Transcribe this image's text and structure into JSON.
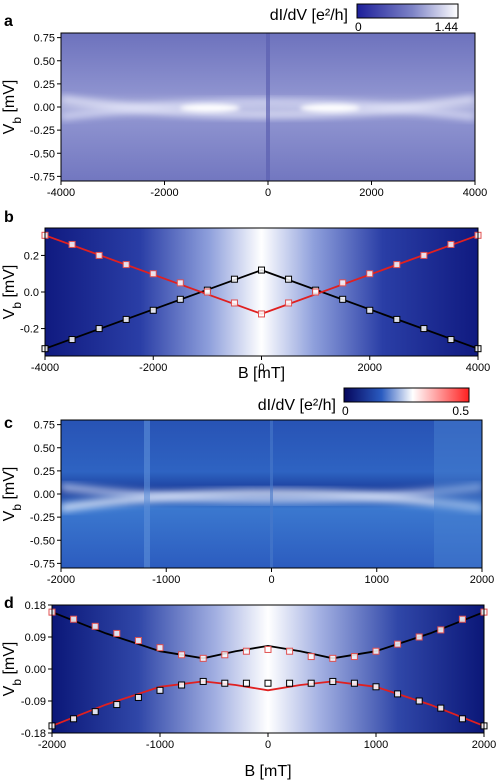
{
  "colorbar_top": {
    "label": "dI/dV [e²/h]",
    "min": "0",
    "max": "1.44",
    "colors": [
      "#1d1f9a",
      "#7d83c6",
      "#ffffff"
    ]
  },
  "colorbar_mid": {
    "label": "dI/dV [e²/h]",
    "min": "0",
    "max": "0.5",
    "colors": [
      "#06065c",
      "#2a5bc0",
      "#ffffff",
      "#ff2020"
    ]
  },
  "chart_data": [
    {
      "panel": "a",
      "type": "heatmap",
      "ylabel": "V_b [mV]",
      "xlim": [
        -4000,
        4000
      ],
      "ylim": [
        -0.8,
        0.8
      ],
      "xticks": [
        "-4000",
        "-2000",
        "0",
        "2000",
        "4000"
      ],
      "yticks": [
        "0.75",
        "0.50",
        "0.25",
        "0.00",
        "-0.25",
        "-0.50",
        "-0.75"
      ],
      "ytick_values": [
        0.75,
        0.5,
        0.25,
        0.0,
        -0.25,
        -0.5,
        -0.75
      ]
    },
    {
      "panel": "b",
      "type": "scatter",
      "xlabel": "B [mT]",
      "ylabel": "V_b [mV]",
      "xlim": [
        -4000,
        4000
      ],
      "ylim": [
        -0.35,
        0.35
      ],
      "xticks": [
        "-4000",
        "-2000",
        "0",
        "2000",
        "4000"
      ],
      "yticks": [
        "0.2",
        "0.0",
        "-0.2"
      ],
      "ytick_values": [
        0.2,
        0.0,
        -0.2
      ],
      "series": [
        {
          "color": "#000000",
          "type": "line",
          "x": [
            -4000,
            0,
            4000
          ],
          "y": [
            -0.31,
            0.12,
            -0.31
          ]
        },
        {
          "color": "#e02020",
          "type": "line",
          "x": [
            -4000,
            0,
            4000
          ],
          "y": [
            0.31,
            -0.12,
            0.31
          ]
        },
        {
          "color": "#000000",
          "type": "markers",
          "x": [
            -4000,
            -3500,
            -3000,
            -2500,
            -2000,
            -1500,
            -1000,
            -500,
            0,
            500,
            1000,
            1500,
            2000,
            2500,
            3000,
            3500,
            4000
          ],
          "y": [
            -0.31,
            -0.26,
            -0.2,
            -0.15,
            -0.1,
            -0.04,
            0.01,
            0.07,
            0.12,
            0.07,
            0.01,
            -0.04,
            -0.1,
            -0.15,
            -0.2,
            -0.26,
            -0.31
          ]
        },
        {
          "color": "#e05050",
          "type": "markers",
          "x": [
            -4000,
            -3500,
            -3000,
            -2500,
            -2000,
            -1500,
            -1000,
            -500,
            0,
            500,
            1000,
            1500,
            2000,
            2500,
            3000,
            3500,
            4000
          ],
          "y": [
            0.31,
            0.26,
            0.2,
            0.15,
            0.1,
            0.05,
            0.0,
            -0.06,
            -0.12,
            -0.06,
            0.0,
            0.05,
            0.1,
            0.15,
            0.2,
            0.26,
            0.31
          ]
        }
      ]
    },
    {
      "panel": "c",
      "type": "heatmap",
      "ylabel": "V_b [mV]",
      "xlim": [
        -2000,
        2000
      ],
      "ylim": [
        -0.8,
        0.8
      ],
      "xticks": [
        "-2000",
        "-1000",
        "0",
        "1000",
        "2000"
      ],
      "yticks": [
        "0.75",
        "0.50",
        "0.25",
        "0.00",
        "-0.25",
        "-0.50",
        "-0.75"
      ],
      "ytick_values": [
        0.75,
        0.5,
        0.25,
        0.0,
        -0.25,
        -0.5,
        -0.75
      ]
    },
    {
      "panel": "d",
      "type": "scatter",
      "xlabel": "B [mT]",
      "ylabel": "V_b [mV]",
      "xlim": [
        -2000,
        2000
      ],
      "ylim": [
        -0.18,
        0.18
      ],
      "xticks": [
        "-2000",
        "-1000",
        "0",
        "1000",
        "2000"
      ],
      "yticks": [
        "0.18",
        "0.09",
        "0.00",
        "-0.09",
        "-0.18"
      ],
      "ytick_values": [
        0.18,
        0.09,
        0.0,
        -0.09,
        -0.18
      ],
      "series": [
        {
          "color": "#000000",
          "type": "line",
          "x": [
            -2000,
            -1500,
            -1000,
            -600,
            -300,
            0,
            300,
            600,
            1000,
            1500,
            2000
          ],
          "y": [
            0.16,
            0.1,
            0.05,
            0.03,
            0.05,
            0.065,
            0.05,
            0.03,
            0.05,
            0.1,
            0.16
          ]
        },
        {
          "color": "#e02020",
          "type": "line",
          "x": [
            -2000,
            -1500,
            -1000,
            -600,
            -300,
            0,
            300,
            600,
            1000,
            1500,
            2000
          ],
          "y": [
            -0.16,
            -0.1,
            -0.05,
            -0.035,
            -0.045,
            -0.06,
            -0.045,
            -0.035,
            -0.05,
            -0.1,
            -0.16
          ]
        },
        {
          "color": "#e05050",
          "type": "markers",
          "x": [
            -2000,
            -1800,
            -1600,
            -1400,
            -1200,
            -1000,
            -800,
            -600,
            -400,
            -200,
            0,
            200,
            400,
            600,
            800,
            1000,
            1200,
            1400,
            1600,
            1800,
            2000
          ],
          "y": [
            0.16,
            0.14,
            0.12,
            0.1,
            0.08,
            0.06,
            0.04,
            0.03,
            0.04,
            0.05,
            0.055,
            0.05,
            0.035,
            0.03,
            0.035,
            0.05,
            0.07,
            0.09,
            0.11,
            0.14,
            0.16
          ]
        },
        {
          "color": "#000000",
          "type": "markers",
          "x": [
            -2000,
            -1800,
            -1600,
            -1400,
            -1200,
            -1000,
            -800,
            -600,
            -400,
            -200,
            0,
            200,
            400,
            600,
            800,
            1000,
            1200,
            1400,
            1600,
            1800,
            2000
          ],
          "y": [
            -0.16,
            -0.14,
            -0.12,
            -0.1,
            -0.08,
            -0.06,
            -0.045,
            -0.035,
            -0.04,
            -0.04,
            -0.04,
            -0.04,
            -0.04,
            -0.035,
            -0.04,
            -0.05,
            -0.07,
            -0.09,
            -0.11,
            -0.14,
            -0.16
          ]
        }
      ]
    }
  ]
}
